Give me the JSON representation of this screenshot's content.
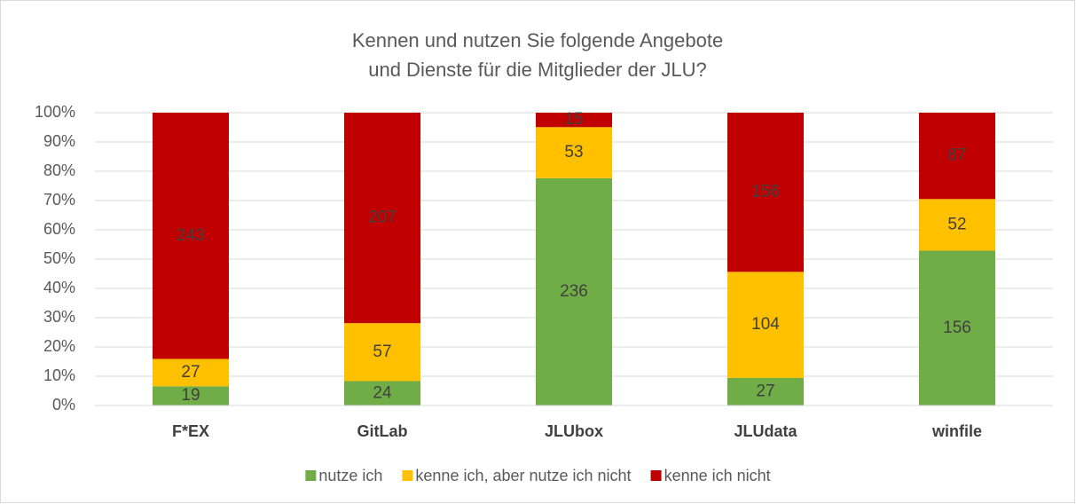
{
  "chart_data": {
    "type": "bar",
    "stacked": "percent",
    "title": [
      "Kennen und nutzen Sie folgende Angebote",
      "und Dienste für die Mitglieder der JLU?"
    ],
    "categories": [
      "F*EX",
      "GitLab",
      "JLUbox",
      "JLUdata",
      "winfile"
    ],
    "series": [
      {
        "name": "nutze ich",
        "color": "#70ad47",
        "values": [
          19,
          24,
          236,
          27,
          156
        ]
      },
      {
        "name": "kenne ich, aber nutze ich nicht",
        "color": "#ffc000",
        "values": [
          27,
          57,
          53,
          104,
          52
        ]
      },
      {
        "name": "kenne ich nicht",
        "color": "#c00000",
        "values": [
          243,
          207,
          15,
          156,
          87
        ]
      }
    ],
    "ylim": [
      0,
      100
    ],
    "yticks": [
      {
        "value": 0,
        "label": "0%"
      },
      {
        "value": 10,
        "label": "10%"
      },
      {
        "value": 20,
        "label": "20%"
      },
      {
        "value": 30,
        "label": "30%"
      },
      {
        "value": 40,
        "label": "40%"
      },
      {
        "value": 50,
        "label": "50%"
      },
      {
        "value": 60,
        "label": "60%"
      },
      {
        "value": 70,
        "label": "70%"
      },
      {
        "value": 80,
        "label": "80%"
      },
      {
        "value": 90,
        "label": "90%"
      },
      {
        "value": 100,
        "label": "100%"
      }
    ],
    "grid": true,
    "legend": "bottom"
  }
}
